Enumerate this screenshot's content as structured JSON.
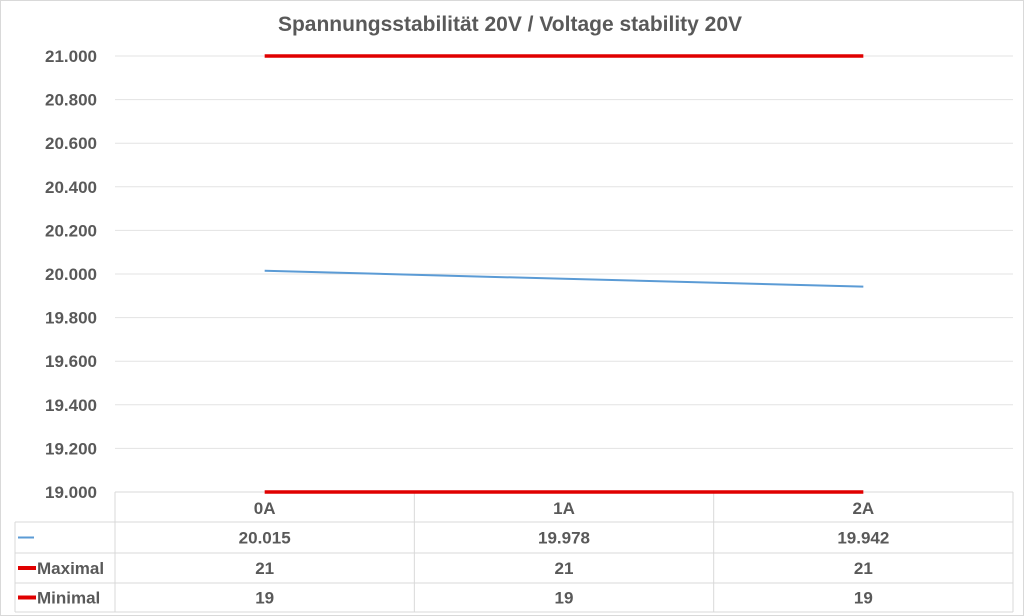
{
  "chart_data": {
    "type": "line",
    "title": "Spannungsstabilität 20V / Voltage stability 20V",
    "xlabel": "",
    "ylabel": "",
    "categories": [
      "0A",
      "1A",
      "2A"
    ],
    "ylim": [
      19,
      21
    ],
    "yticks": [
      "19.000",
      "19.200",
      "19.400",
      "19.600",
      "19.800",
      "20.000",
      "20.200",
      "20.400",
      "20.600",
      "20.800",
      "21.000"
    ],
    "grid": true,
    "legend": "data-table",
    "series": [
      {
        "name": "",
        "color": "#5b9bd5",
        "values": [
          20.015,
          19.978,
          19.942
        ],
        "labels": [
          "20.015",
          "19.978",
          "19.942"
        ]
      },
      {
        "name": "Maximal",
        "color": "#e00000",
        "values": [
          21,
          21,
          21
        ],
        "labels": [
          "21",
          "21",
          "21"
        ]
      },
      {
        "name": "Minimal",
        "color": "#e00000",
        "values": [
          19,
          19,
          19
        ],
        "labels": [
          "19",
          "19",
          "19"
        ]
      }
    ]
  }
}
